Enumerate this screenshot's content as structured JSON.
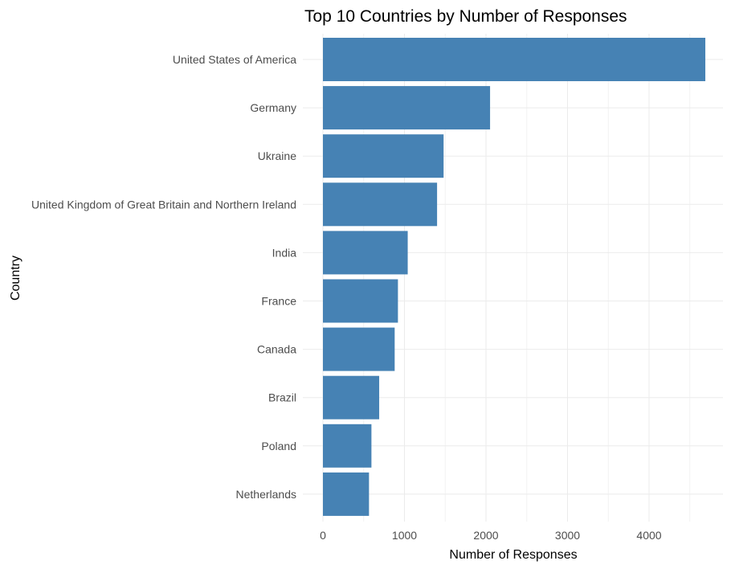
{
  "chart_data": {
    "type": "bar",
    "orientation": "horizontal",
    "title": "Top 10 Countries by Number of Responses",
    "xlabel": "Number of Responses",
    "ylabel": "Country",
    "categories": [
      "United States of America",
      "Germany",
      "Ukraine",
      "United Kingdom of Great Britain and Northern Ireland",
      "India",
      "France",
      "Canada",
      "Brazil",
      "Poland",
      "Netherlands"
    ],
    "values": [
      4690,
      2050,
      1480,
      1400,
      1040,
      920,
      880,
      690,
      595,
      565
    ],
    "xlim": [
      0,
      4690
    ],
    "xticks": [
      0,
      1000,
      2000,
      3000,
      4000
    ],
    "xtick_labels": [
      "0",
      "1000",
      "2000",
      "3000",
      "4000"
    ],
    "grid": true,
    "legend": "none",
    "bar_color": "#4682B4"
  }
}
